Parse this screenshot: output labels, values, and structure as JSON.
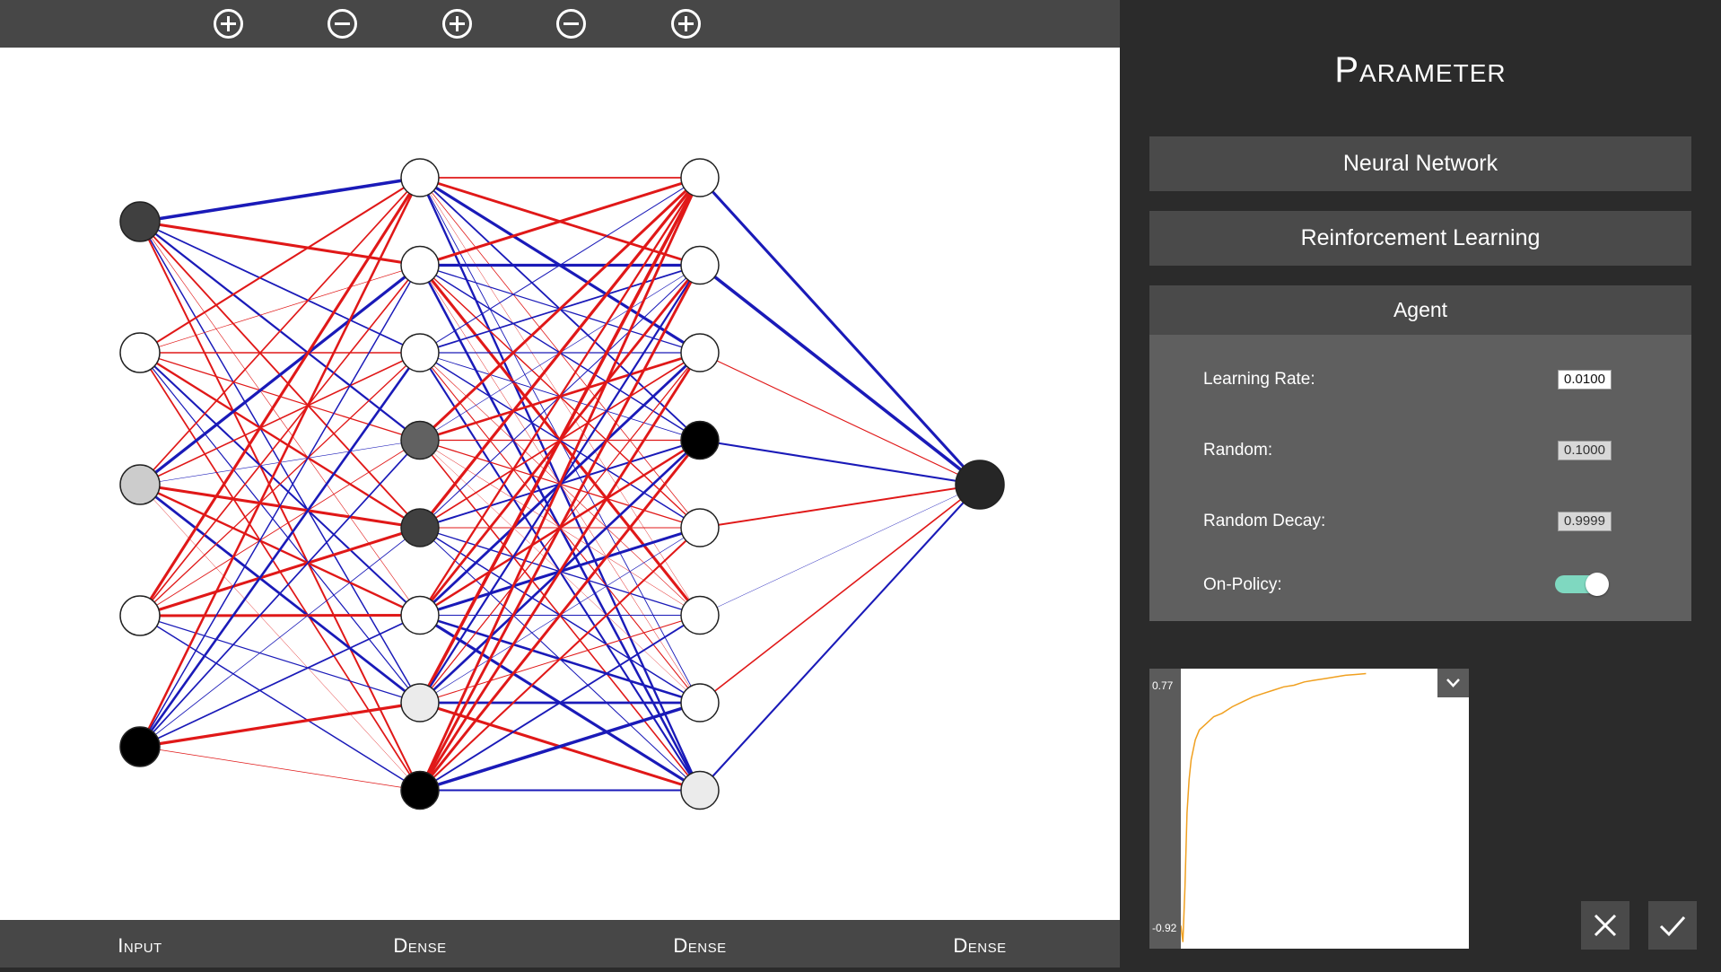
{
  "toolbar": {
    "buttons": [
      {
        "icon": "plus-circle-icon",
        "action": "add-layer"
      },
      {
        "icon": "minus-circle-icon",
        "action": "remove-layer"
      },
      {
        "icon": "plus-circle-icon",
        "action": "add-layer"
      },
      {
        "icon": "minus-circle-icon",
        "action": "remove-layer"
      },
      {
        "icon": "plus-circle-icon",
        "action": "add-layer"
      }
    ]
  },
  "network": {
    "layers": [
      {
        "label": "Input",
        "neurons": [
          0.75,
          0.0,
          0.2,
          0.0,
          1.0
        ]
      },
      {
        "label": "Dense",
        "neurons": [
          0.0,
          0.0,
          0.0,
          0.62,
          0.75,
          0.0,
          0.08,
          1.0
        ]
      },
      {
        "label": "Dense",
        "neurons": [
          0.0,
          0.0,
          0.0,
          1.0,
          0.0,
          0.0,
          0.0,
          0.08
        ]
      },
      {
        "label": "Dense",
        "neurons": [
          0.85
        ]
      }
    ],
    "colors": {
      "positive": "#e01818",
      "negative": "#1a1ab8"
    }
  },
  "panel": {
    "title": "Parameter",
    "sections": {
      "neural_network": "Neural Network",
      "reinforcement_learning": "Reinforcement Learning",
      "agent": "Agent"
    },
    "agent": {
      "learning_rate": {
        "label": "Learning Rate:",
        "value": "0.0100"
      },
      "random": {
        "label": "Random:",
        "value": "0.1000"
      },
      "random_decay": {
        "label": "Random Decay:",
        "value": "0.9999"
      },
      "on_policy": {
        "label": "On-Policy:",
        "value": true,
        "color": "#7fd8c0"
      }
    }
  },
  "chart_data": {
    "type": "line",
    "title": "",
    "xlabel": "",
    "ylabel": "",
    "ylim": [
      -0.92,
      0.77
    ],
    "y_tick_labels": {
      "max": "0.77",
      "min": "-0.92"
    },
    "color": "#f0a020",
    "x": [
      0,
      2,
      4,
      6,
      8,
      10,
      14,
      18,
      25,
      32,
      40,
      50,
      60,
      70,
      80,
      90,
      100,
      110,
      120,
      130,
      140,
      150,
      160,
      170,
      180
    ],
    "y": [
      -0.78,
      -0.88,
      -0.55,
      -0.1,
      0.1,
      0.22,
      0.34,
      0.4,
      0.44,
      0.48,
      0.5,
      0.54,
      0.57,
      0.6,
      0.62,
      0.64,
      0.66,
      0.67,
      0.69,
      0.7,
      0.71,
      0.72,
      0.73,
      0.735,
      0.74
    ]
  },
  "actions": {
    "cancel": "close-icon",
    "confirm": "check-icon"
  }
}
